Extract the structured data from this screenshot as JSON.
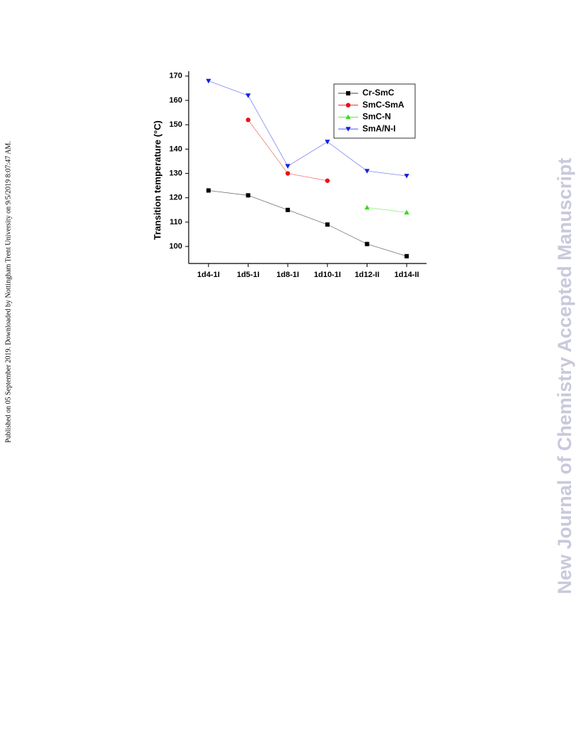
{
  "side_note": "Published on 05 September 2019. Downloaded by Nottingham Trent University on 9/5/2019 8:07:47 AM.",
  "watermark": "New Journal of Chemistry Accepted Manuscript",
  "chart_data": {
    "type": "line",
    "y_label": "Transition temperature (°C)",
    "categories": [
      "1d4-1I",
      "1d5-1I",
      "1d8-1I",
      "1d10-1I",
      "1d12-II",
      "1d14-II"
    ],
    "series": [
      {
        "name": "Cr-SmC",
        "color": "#000000",
        "marker": "square",
        "values": [
          123,
          121,
          115,
          109,
          101,
          96
        ]
      },
      {
        "name": "SmC-SmA",
        "color": "#e8101a",
        "marker": "circle",
        "values": [
          null,
          152,
          130,
          127,
          null,
          null
        ]
      },
      {
        "name": "SmC-N",
        "color": "#33dd11",
        "marker": "triangle-up",
        "values": [
          null,
          null,
          null,
          null,
          116,
          114
        ]
      },
      {
        "name": "SmA/N-I",
        "color": "#1020e0",
        "marker": "triangle-down",
        "values": [
          168,
          162,
          133,
          143,
          131,
          129
        ]
      }
    ],
    "ylim": [
      93,
      172
    ],
    "yticks": [
      100,
      110,
      120,
      130,
      140,
      150,
      160,
      170
    ],
    "legend": "upper right"
  }
}
